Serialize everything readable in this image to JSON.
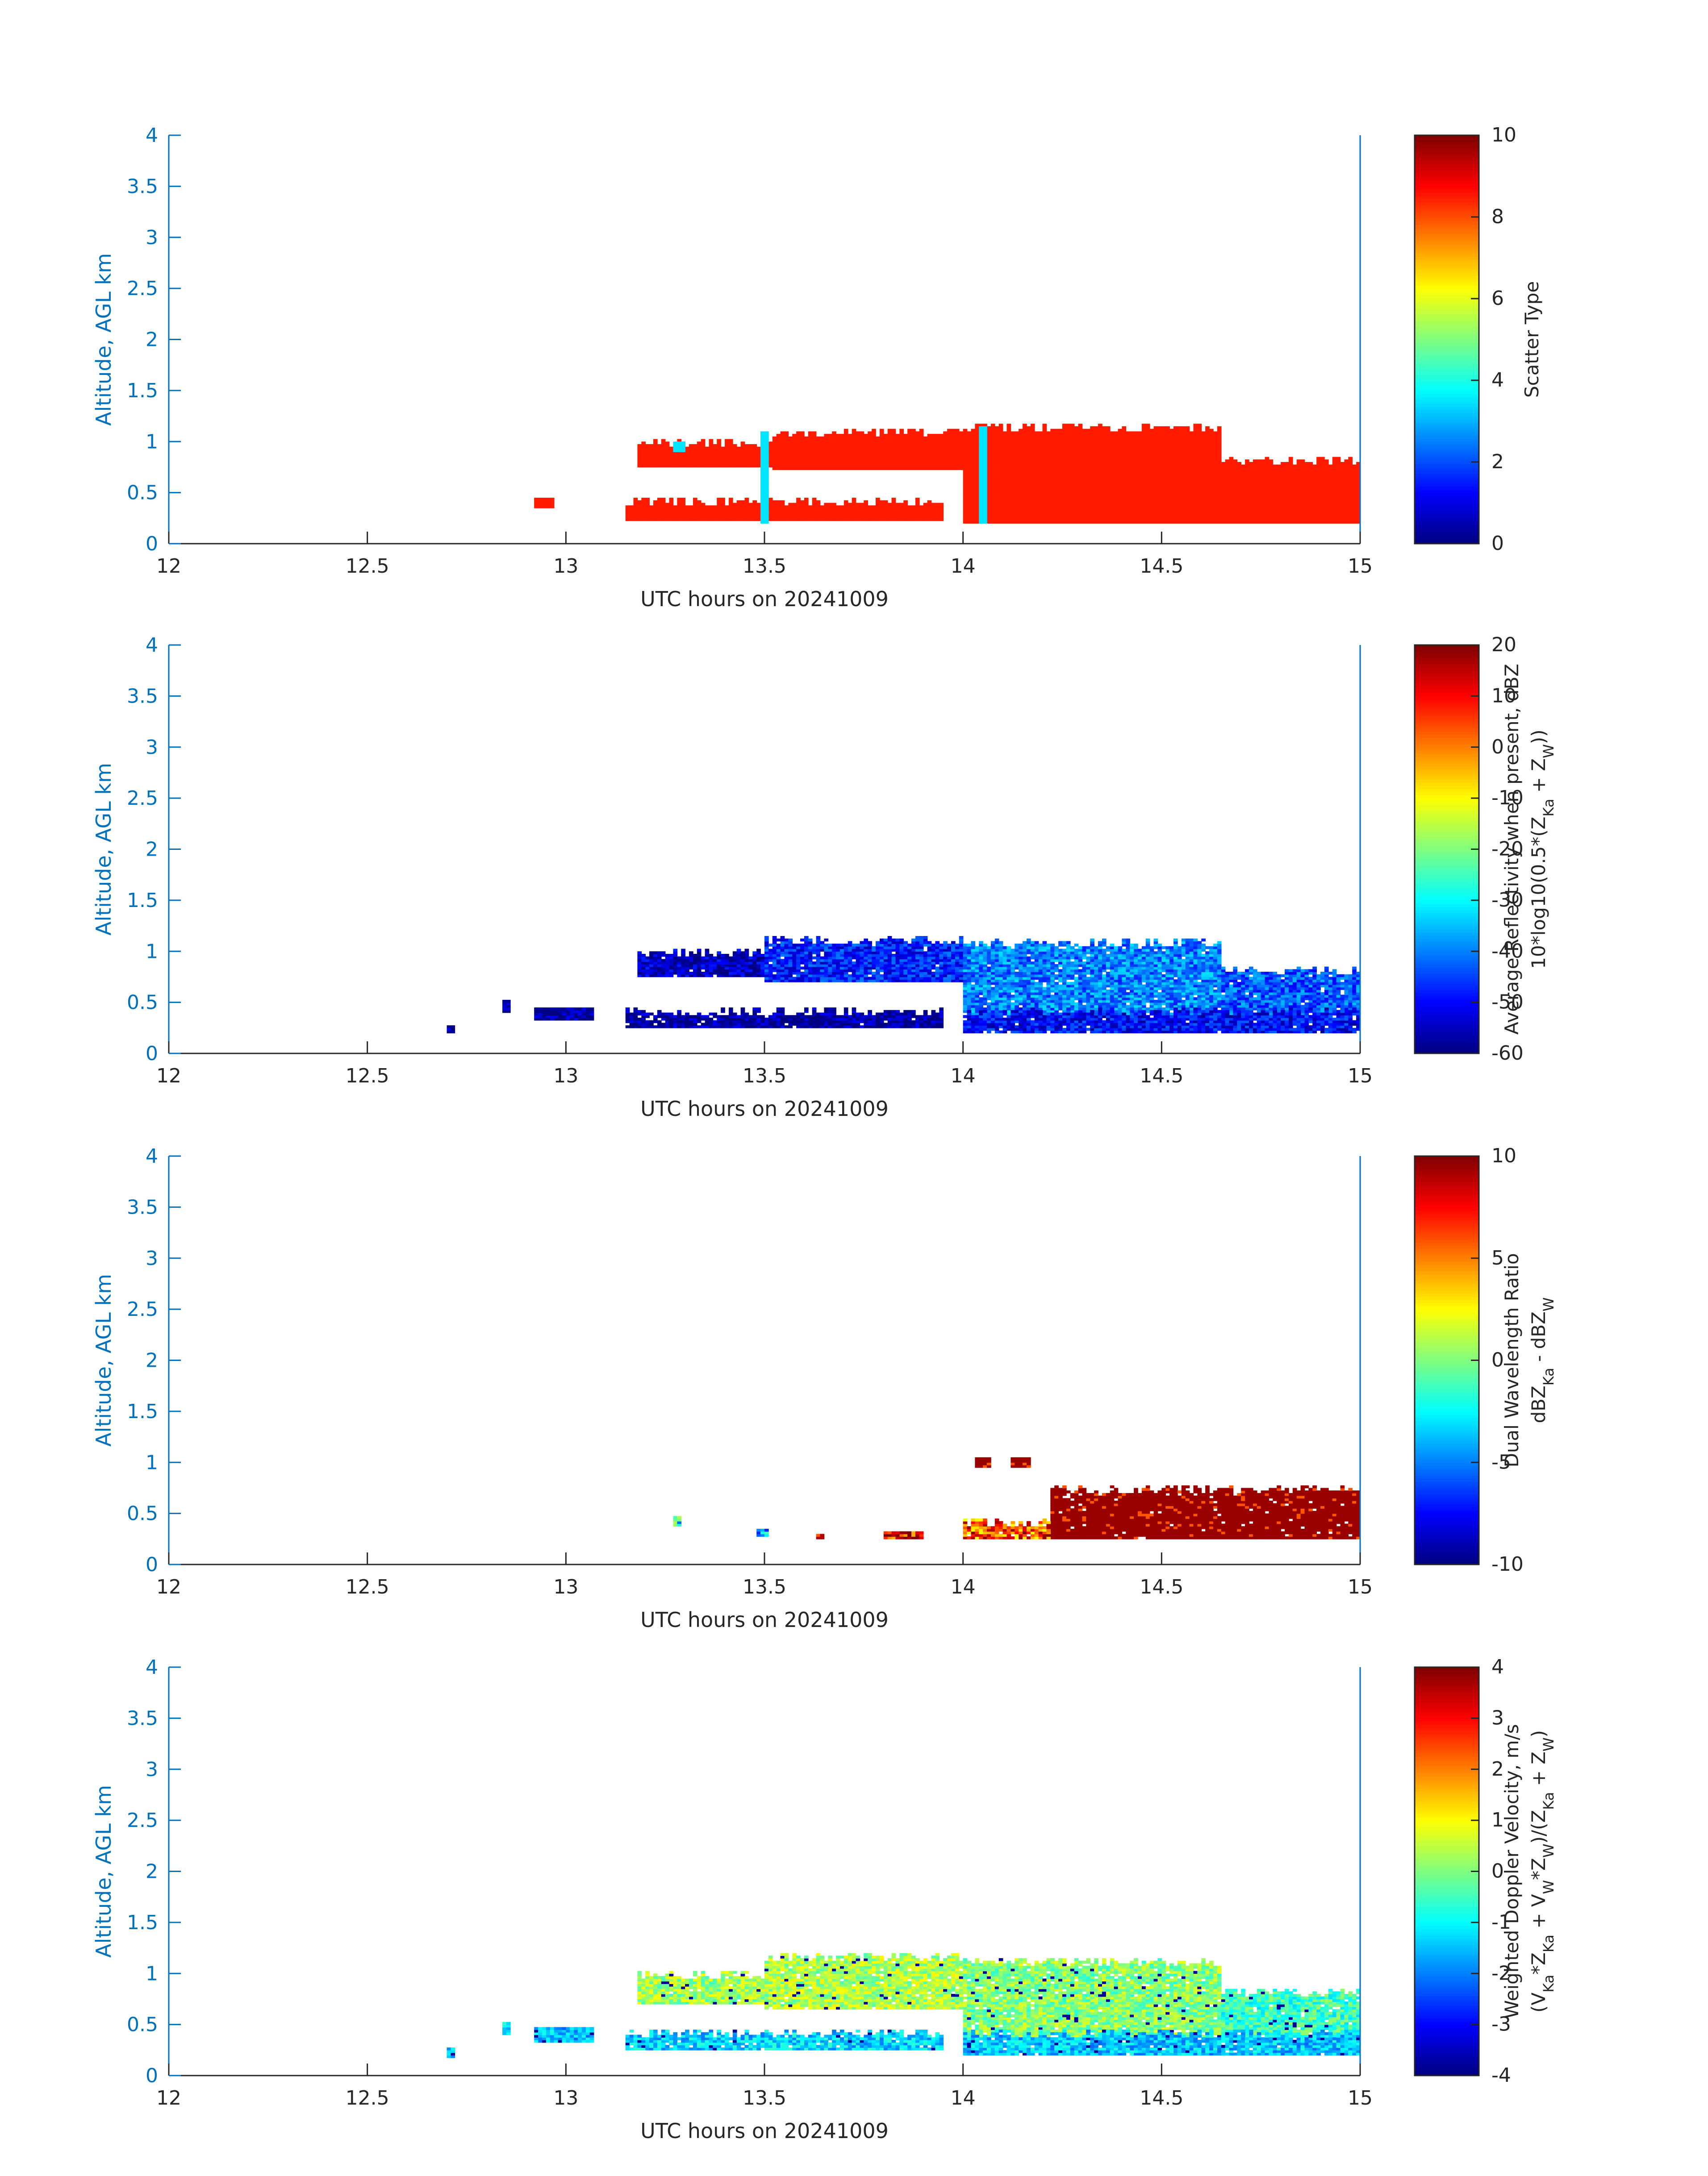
{
  "chart_data": [
    {
      "type": "heatmap",
      "xlabel": "UTC hours on 20241009",
      "ylabel": "Altitude, AGL km",
      "xlim": [
        12,
        15
      ],
      "ylim": [
        0,
        4
      ],
      "x_ticks": [
        "12",
        "12.5",
        "13",
        "13.5",
        "14",
        "14.5",
        "15"
      ],
      "y_ticks": [
        "0",
        "0.5",
        "1",
        "1.5",
        "2",
        "2.5",
        "3",
        "3.5",
        "4"
      ],
      "colorbar": {
        "label_lines": [
          "Scatter Type"
        ],
        "range": [
          0,
          10
        ],
        "ticks": [
          "0",
          "2",
          "4",
          "6",
          "8",
          "10"
        ]
      },
      "regions": [
        {
          "t0": 13.18,
          "t1": 13.52,
          "z0": 0.75,
          "z1": 1.02,
          "value": 8.5
        },
        {
          "t0": 13.52,
          "t1": 14.0,
          "z0": 0.72,
          "z1": 1.12,
          "value": 8.5
        },
        {
          "t0": 14.0,
          "t1": 14.65,
          "z0": 0.2,
          "z1": 1.18,
          "value": 8.5
        },
        {
          "t0": 14.65,
          "t1": 15.0,
          "z0": 0.2,
          "z1": 0.85,
          "value": 8.5
        },
        {
          "t0": 13.15,
          "t1": 13.95,
          "z0": 0.22,
          "z1": 0.45,
          "value": 8.5
        },
        {
          "t0": 12.92,
          "t1": 12.97,
          "z0": 0.35,
          "z1": 0.45,
          "value": 8.5
        },
        {
          "t0": 13.49,
          "t1": 13.51,
          "z0": 0.2,
          "z1": 1.1,
          "value": 3.5
        },
        {
          "t0": 14.04,
          "t1": 14.06,
          "z0": 0.2,
          "z1": 1.15,
          "value": 3.5
        },
        {
          "t0": 13.27,
          "t1": 13.3,
          "z0": 0.9,
          "z1": 1.0,
          "value": 3.5
        }
      ]
    },
    {
      "type": "heatmap",
      "xlabel": "UTC hours on 20241009",
      "ylabel": "Altitude, AGL km",
      "xlim": [
        12,
        15
      ],
      "ylim": [
        0,
        4
      ],
      "x_ticks": [
        "12",
        "12.5",
        "13",
        "13.5",
        "14",
        "14.5",
        "15"
      ],
      "y_ticks": [
        "0",
        "0.5",
        "1",
        "1.5",
        "2",
        "2.5",
        "3",
        "3.5",
        "4"
      ],
      "colorbar": {
        "label_lines": [
          "Average Reflectivity when present, dBZ",
          "10*log10(0.5*(Z_Ka + Z_W))"
        ],
        "range": [
          -60,
          20
        ],
        "ticks": [
          "-60",
          "-50",
          "-40",
          "-30",
          "-20",
          "-10",
          "0",
          "10",
          "20"
        ]
      },
      "regions": [
        {
          "t0": 13.18,
          "t1": 13.5,
          "z0": 0.75,
          "z1": 1.02,
          "value": -55
        },
        {
          "t0": 13.5,
          "t1": 14.0,
          "z0": 0.7,
          "z1": 1.15,
          "value": -48
        },
        {
          "t0": 14.0,
          "t1": 14.65,
          "z0": 0.35,
          "z1": 1.12,
          "value": -40
        },
        {
          "t0": 14.65,
          "t1": 15.0,
          "z0": 0.25,
          "z1": 0.85,
          "value": -43
        },
        {
          "t0": 14.0,
          "t1": 15.0,
          "z0": 0.2,
          "z1": 0.45,
          "value": -50
        },
        {
          "t0": 13.15,
          "t1": 13.95,
          "z0": 0.25,
          "z1": 0.45,
          "value": -58
        },
        {
          "t0": 12.92,
          "t1": 13.07,
          "z0": 0.33,
          "z1": 0.45,
          "value": -58
        },
        {
          "t0": 12.7,
          "t1": 12.72,
          "z0": 0.2,
          "z1": 0.28,
          "value": -58
        },
        {
          "t0": 12.84,
          "t1": 12.86,
          "z0": 0.4,
          "z1": 0.52,
          "value": -58
        }
      ]
    },
    {
      "type": "heatmap",
      "xlabel": "UTC hours on 20241009",
      "ylabel": "Altitude, AGL km",
      "xlim": [
        12,
        15
      ],
      "ylim": [
        0,
        4
      ],
      "x_ticks": [
        "12",
        "12.5",
        "13",
        "13.5",
        "14",
        "14.5",
        "15"
      ],
      "y_ticks": [
        "0",
        "0.5",
        "1",
        "1.5",
        "2",
        "2.5",
        "3",
        "3.5",
        "4"
      ],
      "colorbar": {
        "label_lines": [
          "Dual Wavelength Ratio",
          "dBZ_Ka - dBZ_W"
        ],
        "range": [
          -10,
          10
        ],
        "ticks": [
          "-10",
          "-5",
          "0",
          "5",
          "10"
        ]
      },
      "regions": [
        {
          "t0": 14.22,
          "t1": 15.0,
          "z0": 0.25,
          "z1": 0.78,
          "value": 9.5
        },
        {
          "t0": 14.03,
          "t1": 14.07,
          "z0": 0.95,
          "z1": 1.05,
          "value": 9.5
        },
        {
          "t0": 14.12,
          "t1": 14.17,
          "z0": 0.95,
          "z1": 1.05,
          "value": 9.5
        },
        {
          "t0": 14.0,
          "t1": 14.22,
          "z0": 0.25,
          "z1": 0.45,
          "value": 6
        },
        {
          "t0": 13.27,
          "t1": 13.29,
          "z0": 0.37,
          "z1": 0.47,
          "value": -3
        },
        {
          "t0": 13.48,
          "t1": 13.51,
          "z0": 0.28,
          "z1": 0.36,
          "value": -3
        },
        {
          "t0": 13.63,
          "t1": 13.65,
          "z0": 0.25,
          "z1": 0.3,
          "value": 9
        },
        {
          "t0": 13.8,
          "t1": 13.9,
          "z0": 0.25,
          "z1": 0.32,
          "value": 8
        }
      ]
    },
    {
      "type": "heatmap",
      "xlabel": "UTC hours on 20241009",
      "ylabel": "Altitude, AGL km",
      "xlim": [
        12,
        15
      ],
      "ylim": [
        0,
        4
      ],
      "x_ticks": [
        "12",
        "12.5",
        "13",
        "13.5",
        "14",
        "14.5",
        "15"
      ],
      "y_ticks": [
        "0",
        "0.5",
        "1",
        "1.5",
        "2",
        "2.5",
        "3",
        "3.5",
        "4"
      ],
      "colorbar": {
        "label_lines": [
          "Weighted Doppler Velocity, m/s",
          "(V_Ka*Z_Ka + V_W*Z_W)/(Z_Ka + Z_W)"
        ],
        "range": [
          -4,
          4
        ],
        "ticks": [
          "-4",
          "-3",
          "-2",
          "-1",
          "0",
          "1",
          "2",
          "3",
          "4"
        ]
      },
      "regions": [
        {
          "t0": 13.18,
          "t1": 13.5,
          "z0": 0.7,
          "z1": 1.02,
          "value": 0.3
        },
        {
          "t0": 13.5,
          "t1": 14.0,
          "z0": 0.65,
          "z1": 1.2,
          "value": 0.4
        },
        {
          "t0": 14.0,
          "t1": 14.65,
          "z0": 0.35,
          "z1": 1.15,
          "value": 0.1
        },
        {
          "t0": 14.65,
          "t1": 15.0,
          "z0": 0.25,
          "z1": 0.85,
          "value": -0.5
        },
        {
          "t0": 14.0,
          "t1": 15.0,
          "z0": 0.2,
          "z1": 0.45,
          "value": -1.4
        },
        {
          "t0": 13.15,
          "t1": 13.95,
          "z0": 0.25,
          "z1": 0.45,
          "value": -1.3
        },
        {
          "t0": 12.92,
          "t1": 13.07,
          "z0": 0.33,
          "z1": 0.47,
          "value": -1.5
        },
        {
          "t0": 12.7,
          "t1": 12.72,
          "z0": 0.18,
          "z1": 0.28,
          "value": -1.5
        },
        {
          "t0": 12.84,
          "t1": 12.86,
          "z0": 0.4,
          "z1": 0.52,
          "value": -1.0
        }
      ]
    }
  ],
  "colors": {
    "axis": "#0072BD",
    "text": "#262626",
    "frame": "#262626"
  }
}
